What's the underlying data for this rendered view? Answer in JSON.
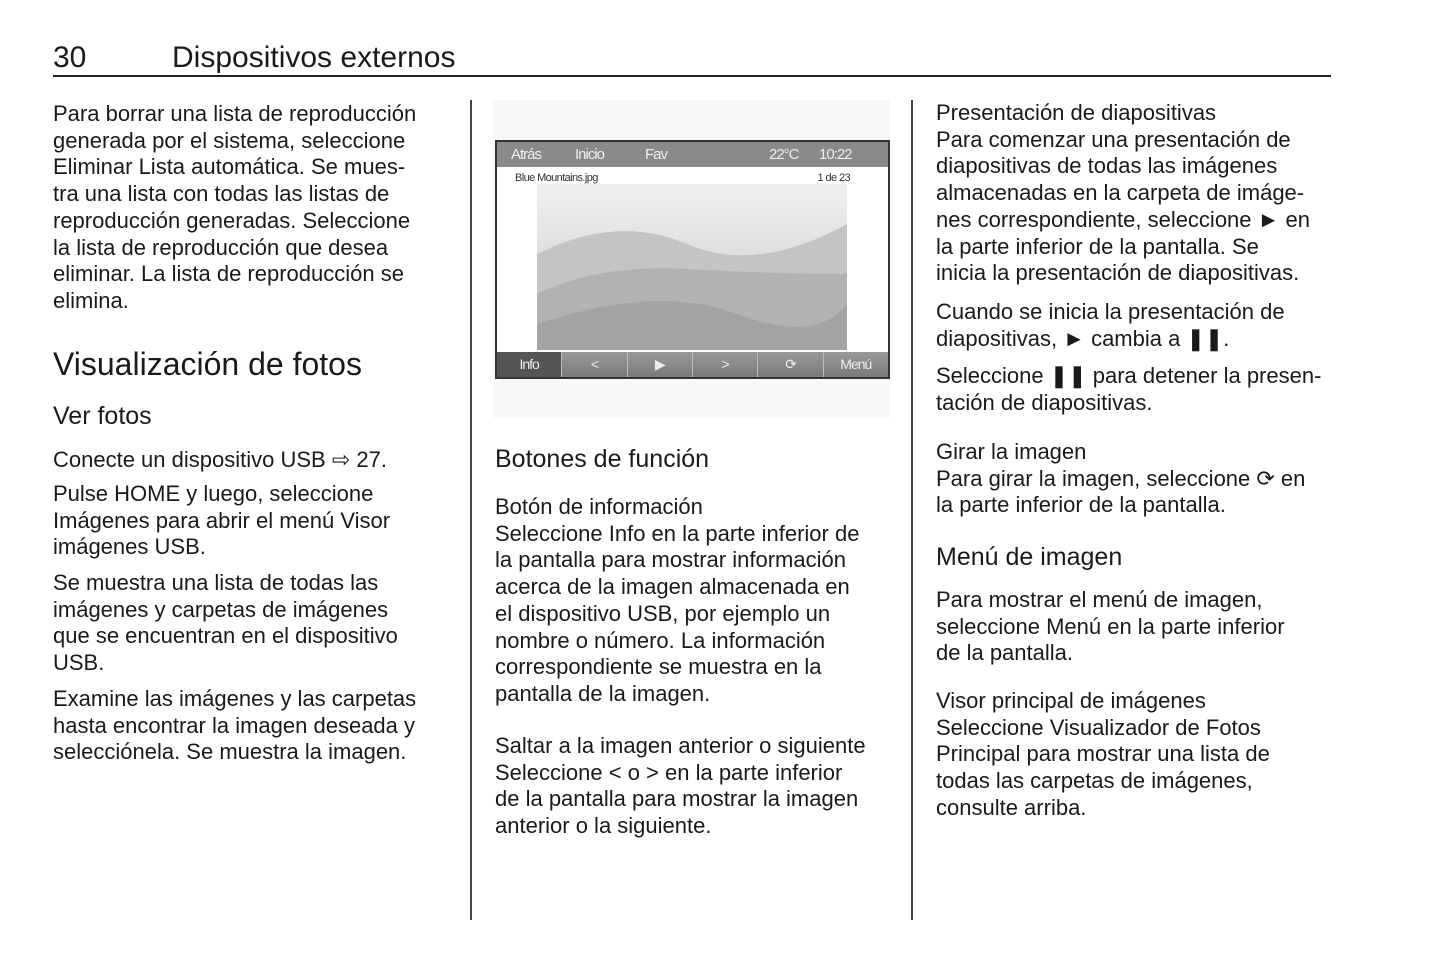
{
  "header": {
    "page_number": "30",
    "title": "Dispositivos externos"
  },
  "col1": {
    "p1": "Para borrar una lista de reproducción\ngenerada por el sistema, seleccione\nEliminar Lista automática. Se mues-\ntra una lista con todas las listas de\nreproducción generadas. Seleccione\nla lista de reproducción que desea\neliminar. La lista de reproducción se\nelimina.",
    "heading": "Visualización de fotos",
    "subheading": "Ver fotos",
    "p2": "Conecte un dispositivo USB ⇨ 27.",
    "p3": "Pulse HOME y luego, seleccione\nImágenes para abrir el menú Visor\nimágenes USB.",
    "p4": "Se muestra una lista de todas las\nimágenes y carpetas de imágenes\nque se encuentran en el dispositivo\nUSB.",
    "p5": "Examine las imágenes y las carpetas\nhasta encontrar la imagen deseada y\nselecciónela. Se muestra la imagen."
  },
  "screen": {
    "top": [
      "Atrás",
      "Inicio",
      "Fav"
    ],
    "temp": "22°C",
    "time": "10:22",
    "filename": "Blue Mountains.jpg",
    "counter": "1 de 23",
    "bottom": [
      "Info",
      "<",
      "▶",
      ">",
      "⟳",
      "Menú"
    ]
  },
  "col2": {
    "heading": "Botones de función",
    "p1": "Botón de información\nSeleccione Info en la parte inferior de\nla pantalla para mostrar información\nacerca de la imagen almacenada en\nel dispositivo USB, por ejemplo un\nnombre o número. La información\ncorrespondiente se muestra en la\npantalla de la imagen.",
    "p2": "Saltar a la imagen anterior o siguiente\nSeleccione < o > en la parte inferior\nde la pantalla para mostrar la imagen\nanterior o la siguiente."
  },
  "col3": {
    "p1": "Presentación de diapositivas\nPara comenzar una presentación de\ndiapositivas de todas las imágenes\nalmacenadas en la carpeta de imáge-\nnes correspondiente, seleccione ► en\nla parte inferior de la pantalla. Se\ninicia la presentación de diapositivas.",
    "p2": "Cuando se inicia la presentación de\ndiapositivas, ► cambia a ❚❚.",
    "p3": "Seleccione ❚❚ para detener la presen-\ntación de diapositivas.",
    "p4": "Girar la imagen\nPara girar la imagen, seleccione ⟳ en\nla parte inferior de la pantalla.",
    "heading": "Menú de imagen",
    "p5": "Para mostrar el menú de imagen,\nseleccione Menú en la parte inferior\nde la pantalla.",
    "p6": "Visor principal de imágenes\nSeleccione Visualizador de Fotos\nPrincipal para mostrar una lista de\ntodas las carpetas de imágenes,\nconsulte arriba."
  }
}
